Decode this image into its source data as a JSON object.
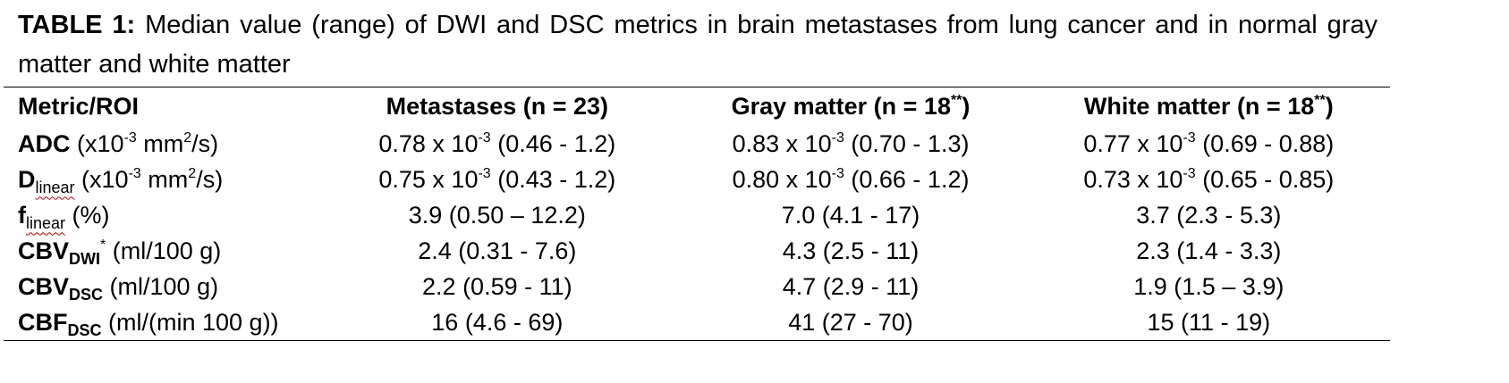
{
  "caption": {
    "lead": "TABLE 1:",
    "text": " Median value (range) of DWI and DSC metrics in brain metastases from lung cancer and in normal gray matter and white matter"
  },
  "header": {
    "metric": "Metric/ROI",
    "metastases": "Metastases (n = 23)",
    "gray": "Gray matter (n = 18",
    "white": "White matter (n = 18",
    "footnote_mark": "**",
    "close": ")"
  },
  "rows": [
    {
      "name": "ADC",
      "subscript": "",
      "superscript": "",
      "unit_pre": " (x10",
      "unit_exp": "-3",
      "unit_mid": " mm",
      "unit_exp2": "2",
      "unit_post": "/s)",
      "metastases": {
        "base": "0.78 x 10",
        "exp": "-3",
        "range": " (0.46 - 1.2)"
      },
      "gray": {
        "base": "0.83 x 10",
        "exp": "-3",
        "range": " (0.70 - 1.3)"
      },
      "white": {
        "base": "0.77 x 10",
        "exp": "-3",
        "range": " (0.69 - 0.88)"
      }
    },
    {
      "name": "D",
      "subscript": "linear",
      "unit_pre": " (x10",
      "unit_exp": "-3",
      "unit_mid": " mm",
      "unit_exp2": "2",
      "unit_post": "/s)",
      "metastases": {
        "base": "0.75 x 10",
        "exp": "-3",
        "range": " (0.43 - 1.2)"
      },
      "gray": {
        "base": "0.80 x 10",
        "exp": "-3",
        "range": " (0.66 - 1.2)"
      },
      "white": {
        "base": "0.73 x 10",
        "exp": "-3",
        "range": " (0.65 - 0.85)"
      }
    },
    {
      "name": "f",
      "subscript": "linear",
      "unit": " (%)",
      "metastases": "3.9 (0.50 – 12.2)",
      "gray": "7.0 (4.1 - 17)",
      "white": "3.7 (2.3 - 5.3)"
    },
    {
      "name": "CBV",
      "subscript": "DWI",
      "superscript": "*",
      "unit": " (ml/100 g)",
      "metastases": "2.4 (0.31 - 7.6)",
      "gray": "4.3 (2.5 - 11)",
      "white": "2.3 (1.4 - 3.3)"
    },
    {
      "name": "CBV",
      "subscript": "DSC",
      "unit": " (ml/100 g)",
      "metastases": "2.2 (0.59 - 11)",
      "gray": "4.7 (2.9 - 11)",
      "white": "1.9 (1.5 – 3.9)"
    },
    {
      "name": "CBF",
      "subscript": "DSC",
      "unit": " (ml/(min 100 g))",
      "metastases": "16 (4.6 - 69)",
      "gray": "41 (27 - 70)",
      "white": "15 (11 - 19)"
    }
  ]
}
